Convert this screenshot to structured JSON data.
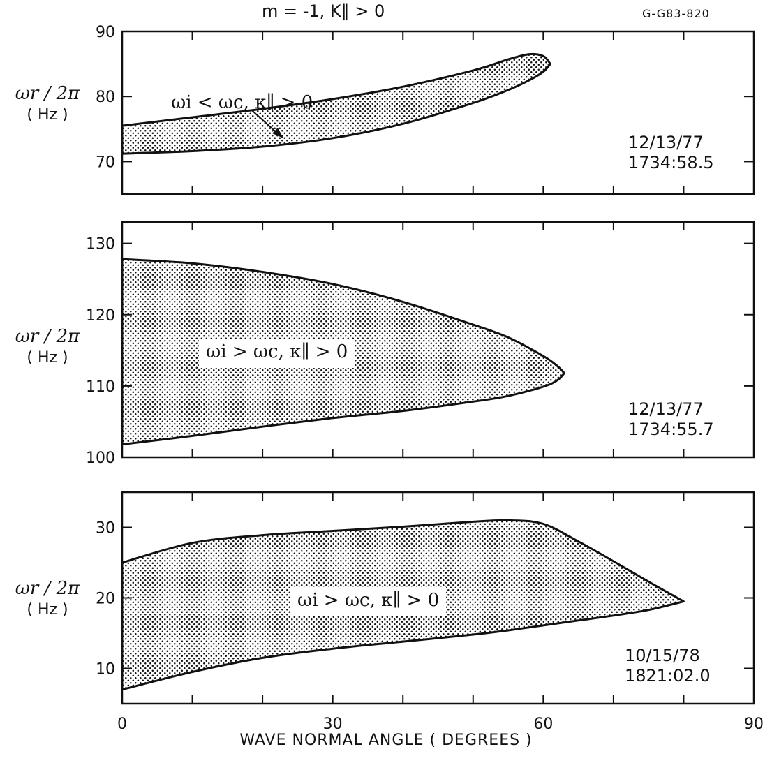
{
  "figure": {
    "title": "m = -1, K∥ > 0",
    "figure_id": "G-G83-820",
    "xlabel": "WAVE NORMAL ANGLE ( DEGREES )"
  },
  "chart_data": [
    {
      "type": "area",
      "xlabel": "WAVE NORMAL ANGLE ( DEGREES )",
      "ylabel": "ωr / 2π",
      "yunit": "( Hz )",
      "xlim": [
        0,
        90
      ],
      "ylim": [
        65,
        90
      ],
      "xticks": [],
      "yticks": [
        70,
        80,
        90
      ],
      "timestamp": [
        "12/13/77",
        "1734:58.5"
      ],
      "annotation": "ωi < ωc, κ∥ > 0",
      "region": {
        "upper": {
          "x": [
            0,
            10,
            20,
            30,
            40,
            50,
            55,
            58,
            60,
            61
          ],
          "y": [
            75.5,
            76.8,
            78.1,
            79.6,
            81.5,
            84.0,
            85.7,
            86.5,
            86.2,
            85.0
          ]
        },
        "lower": {
          "x": [
            0,
            10,
            20,
            30,
            40,
            50,
            55,
            58,
            60,
            61
          ],
          "y": [
            71.2,
            71.6,
            72.3,
            73.6,
            75.8,
            79.0,
            81.0,
            82.5,
            83.8,
            85.0
          ]
        }
      }
    },
    {
      "type": "area",
      "xlabel": "WAVE NORMAL ANGLE ( DEGREES )",
      "ylabel": "ωr / 2π",
      "yunit": "( Hz )",
      "xlim": [
        0,
        90
      ],
      "ylim": [
        100,
        133
      ],
      "xticks": [],
      "yticks": [
        100,
        110,
        120,
        130
      ],
      "timestamp": [
        "12/13/77",
        "1734:55.7"
      ],
      "annotation": "ωi > ωc, κ∥ > 0",
      "region": {
        "upper": {
          "x": [
            0,
            10,
            20,
            30,
            40,
            50,
            55,
            60,
            62,
            63
          ],
          "y": [
            127.8,
            127.2,
            126.0,
            124.3,
            121.8,
            118.6,
            116.8,
            114.2,
            112.8,
            111.8
          ]
        },
        "lower": {
          "x": [
            0,
            10,
            20,
            30,
            40,
            50,
            55,
            60,
            62,
            63
          ],
          "y": [
            101.8,
            103.0,
            104.3,
            105.5,
            106.5,
            107.8,
            108.6,
            109.9,
            110.8,
            111.8
          ]
        }
      }
    },
    {
      "type": "area",
      "xlabel": "WAVE NORMAL ANGLE ( DEGREES )",
      "ylabel": "ωr / 2π",
      "yunit": "( Hz )",
      "xlim": [
        0,
        90
      ],
      "ylim": [
        5,
        35
      ],
      "xticks": [
        0,
        30,
        60,
        90
      ],
      "yticks": [
        10,
        20,
        30
      ],
      "timestamp": [
        "10/15/78",
        "1821:02.0"
      ],
      "annotation": "ωi > ωc, κ∥ > 0",
      "region": {
        "upper": {
          "x": [
            0,
            10,
            20,
            30,
            40,
            50,
            55,
            60,
            65,
            70,
            75,
            80
          ],
          "y": [
            25.0,
            27.8,
            28.9,
            29.5,
            30.1,
            30.8,
            31.0,
            30.5,
            28.0,
            25.2,
            22.3,
            19.5
          ]
        },
        "lower": {
          "x": [
            0,
            10,
            20,
            30,
            40,
            50,
            55,
            60,
            65,
            70,
            75,
            80
          ],
          "y": [
            7.0,
            9.5,
            11.5,
            12.8,
            13.8,
            14.8,
            15.4,
            16.1,
            16.8,
            17.5,
            18.3,
            19.5
          ]
        }
      }
    }
  ]
}
